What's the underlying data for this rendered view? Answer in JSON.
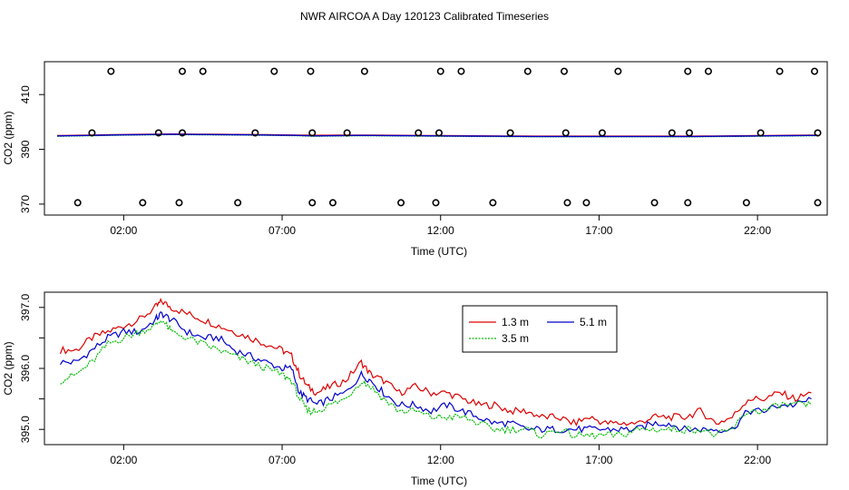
{
  "title": "NWR AIRCOA A  Day 120123  Calibrated Timeseries",
  "colors": {
    "red": "#dd0000",
    "green": "#00bb00",
    "blue": "#0000cc",
    "axis": "#000000"
  },
  "chart_data": [
    {
      "type": "scatter+line",
      "xlabel": "Time (UTC)",
      "ylabel": "CO2 (ppm)",
      "xlim": [
        -0.5,
        24.2
      ],
      "ylim": [
        366.0,
        422.0
      ],
      "xticks": [
        2,
        7,
        12,
        17,
        22
      ],
      "xtick_labels": [
        "02:00",
        "07:00",
        "12:00",
        "17:00",
        "22:00"
      ],
      "yticks": [
        370,
        390,
        410
      ],
      "ytick_labels": [
        "370",
        "390",
        "410"
      ],
      "calibration_points": {
        "high_y": 418.5,
        "high_x": [
          1.6,
          3.85,
          4.5,
          6.75,
          7.9,
          9.6,
          12.0,
          12.65,
          14.75,
          15.9,
          17.6,
          19.8,
          20.45,
          22.7,
          23.8
        ],
        "mid_y": 396.0,
        "mid_x": [
          1.0,
          3.1,
          3.85,
          6.15,
          7.95,
          9.05,
          11.3,
          11.95,
          14.2,
          15.95,
          17.1,
          19.3,
          19.85,
          22.1,
          23.9
        ],
        "low_y": 370.5,
        "low_x": [
          0.55,
          2.6,
          3.75,
          5.6,
          7.95,
          8.6,
          10.75,
          11.85,
          13.65,
          16.0,
          16.6,
          18.75,
          19.8,
          21.65,
          23.9
        ]
      },
      "series": [
        {
          "name": "1.3 m",
          "color": "#dd0000",
          "x": [
            -0.1,
            2,
            3.5,
            6,
            7.5,
            8,
            9.5,
            12,
            15,
            17,
            20,
            22,
            23.9
          ],
          "values": [
            395.0,
            395.4,
            395.6,
            395.4,
            395.2,
            395.1,
            395.2,
            395.0,
            394.8,
            394.8,
            394.8,
            395.0,
            395.2
          ]
        },
        {
          "name": "3.5 m",
          "color": "#00bb00",
          "x": [
            -0.1,
            2,
            3.5,
            6,
            7.5,
            8,
            9.5,
            12,
            15,
            17,
            20,
            22,
            23.9
          ],
          "values": [
            394.8,
            395.2,
            395.4,
            395.2,
            395.0,
            394.8,
            395.0,
            394.8,
            394.6,
            394.6,
            394.6,
            394.8,
            395.0
          ]
        },
        {
          "name": "5.1 m",
          "color": "#0000cc",
          "x": [
            -0.1,
            2,
            3.5,
            6,
            7.5,
            8,
            9.5,
            12,
            15,
            17,
            20,
            22,
            23.9
          ],
          "values": [
            394.9,
            395.3,
            395.5,
            395.3,
            395.1,
            394.9,
            395.1,
            394.9,
            394.7,
            394.7,
            394.7,
            394.9,
            395.1
          ]
        }
      ]
    },
    {
      "type": "line",
      "xlabel": "Time (UTC)",
      "ylabel": "CO2 (ppm)",
      "xlim": [
        -0.5,
        24.2
      ],
      "ylim": [
        394.75,
        397.25
      ],
      "xticks": [
        2,
        7,
        12,
        17,
        22
      ],
      "xtick_labels": [
        "02:00",
        "07:00",
        "12:00",
        "17:00",
        "22:00"
      ],
      "yticks": [
        395.0,
        395.5,
        396.0,
        396.5,
        397.0
      ],
      "ytick_labels": [
        "395.0",
        "",
        "396.0",
        "",
        "397.0"
      ],
      "legend": [
        "1.3 m",
        "5.1 m",
        "3.5 m"
      ],
      "series": [
        {
          "name": "1.3 m",
          "color": "#dd0000",
          "x": [
            0.0,
            0.5,
            1.0,
            1.5,
            2.0,
            2.5,
            3.0,
            3.2,
            3.5,
            4.0,
            4.5,
            5.0,
            5.5,
            6.0,
            6.5,
            7.0,
            7.3,
            7.55,
            7.8,
            8.1,
            8.5,
            9.0,
            9.5,
            9.8,
            10.2,
            10.7,
            11.2,
            11.7,
            12.2,
            12.7,
            13.2,
            13.7,
            14.2,
            14.7,
            15.2,
            15.7,
            16.2,
            16.7,
            17.2,
            17.7,
            18.2,
            18.7,
            19.2,
            19.7,
            20.2,
            20.7,
            21.2,
            21.7,
            22.2,
            22.7,
            23.2,
            23.7
          ],
          "values": [
            396.3,
            396.3,
            396.5,
            396.6,
            396.7,
            396.8,
            397.0,
            397.1,
            397.0,
            396.9,
            396.8,
            396.7,
            396.6,
            396.5,
            396.4,
            396.3,
            396.2,
            395.9,
            395.7,
            395.6,
            395.7,
            395.8,
            396.1,
            395.9,
            395.8,
            395.6,
            395.7,
            395.6,
            395.6,
            395.5,
            395.4,
            395.4,
            395.3,
            395.3,
            395.2,
            395.2,
            395.1,
            395.2,
            395.1,
            395.1,
            395.1,
            395.2,
            395.2,
            395.2,
            395.3,
            395.1,
            395.2,
            395.5,
            395.5,
            395.6,
            395.5,
            395.6
          ]
        },
        {
          "name": "5.1 m",
          "color": "#0000cc",
          "x": [
            0.0,
            0.5,
            1.0,
            1.5,
            2.0,
            2.5,
            3.0,
            3.2,
            3.5,
            4.0,
            4.5,
            5.0,
            5.5,
            6.0,
            6.5,
            7.0,
            7.3,
            7.55,
            7.8,
            8.1,
            8.5,
            9.0,
            9.5,
            9.8,
            10.2,
            10.7,
            11.2,
            11.7,
            12.2,
            12.7,
            13.2,
            13.7,
            14.2,
            14.7,
            15.2,
            15.7,
            16.2,
            16.7,
            17.2,
            17.7,
            18.2,
            18.7,
            19.2,
            19.7,
            20.2,
            20.7,
            21.2,
            21.7,
            22.2,
            22.7,
            23.2,
            23.7
          ],
          "values": [
            396.1,
            396.1,
            396.3,
            396.5,
            396.6,
            396.6,
            396.8,
            396.9,
            396.8,
            396.6,
            396.5,
            396.5,
            396.3,
            396.2,
            396.1,
            396.0,
            396.0,
            395.6,
            395.5,
            395.4,
            395.5,
            395.6,
            395.9,
            395.8,
            395.6,
            395.4,
            395.4,
            395.3,
            395.4,
            395.3,
            395.2,
            395.1,
            395.1,
            395.0,
            395.0,
            395.0,
            395.0,
            395.0,
            395.0,
            395.0,
            395.0,
            395.1,
            395.1,
            395.0,
            395.0,
            395.0,
            395.0,
            395.3,
            395.3,
            395.4,
            395.4,
            395.5
          ]
        },
        {
          "name": "3.5 m",
          "color": "#00bb00",
          "x": [
            0.0,
            0.5,
            1.0,
            1.5,
            2.0,
            2.5,
            3.0,
            3.2,
            3.5,
            4.0,
            4.5,
            5.0,
            5.5,
            6.0,
            6.5,
            7.0,
            7.3,
            7.55,
            7.8,
            8.1,
            8.5,
            9.0,
            9.5,
            9.8,
            10.2,
            10.7,
            11.2,
            11.7,
            12.2,
            12.7,
            13.2,
            13.7,
            14.2,
            14.7,
            15.2,
            15.7,
            16.2,
            16.7,
            17.2,
            17.7,
            18.2,
            18.7,
            19.2,
            19.7,
            20.2,
            20.7,
            21.2,
            21.7,
            22.2,
            22.7,
            23.2,
            23.7
          ],
          "values": [
            395.8,
            395.9,
            396.1,
            396.4,
            396.5,
            396.6,
            396.7,
            396.8,
            396.6,
            396.5,
            396.4,
            396.3,
            396.2,
            396.1,
            396.0,
            395.9,
            395.8,
            395.5,
            395.3,
            395.3,
            395.4,
            395.5,
            395.8,
            395.7,
            395.5,
            395.3,
            395.3,
            395.2,
            395.2,
            395.2,
            395.1,
            395.0,
            395.0,
            395.0,
            394.9,
            395.0,
            394.9,
            394.9,
            394.9,
            394.9,
            395.0,
            395.0,
            395.0,
            395.0,
            395.0,
            394.9,
            395.0,
            395.3,
            395.3,
            395.4,
            395.4,
            395.4
          ]
        }
      ]
    }
  ]
}
